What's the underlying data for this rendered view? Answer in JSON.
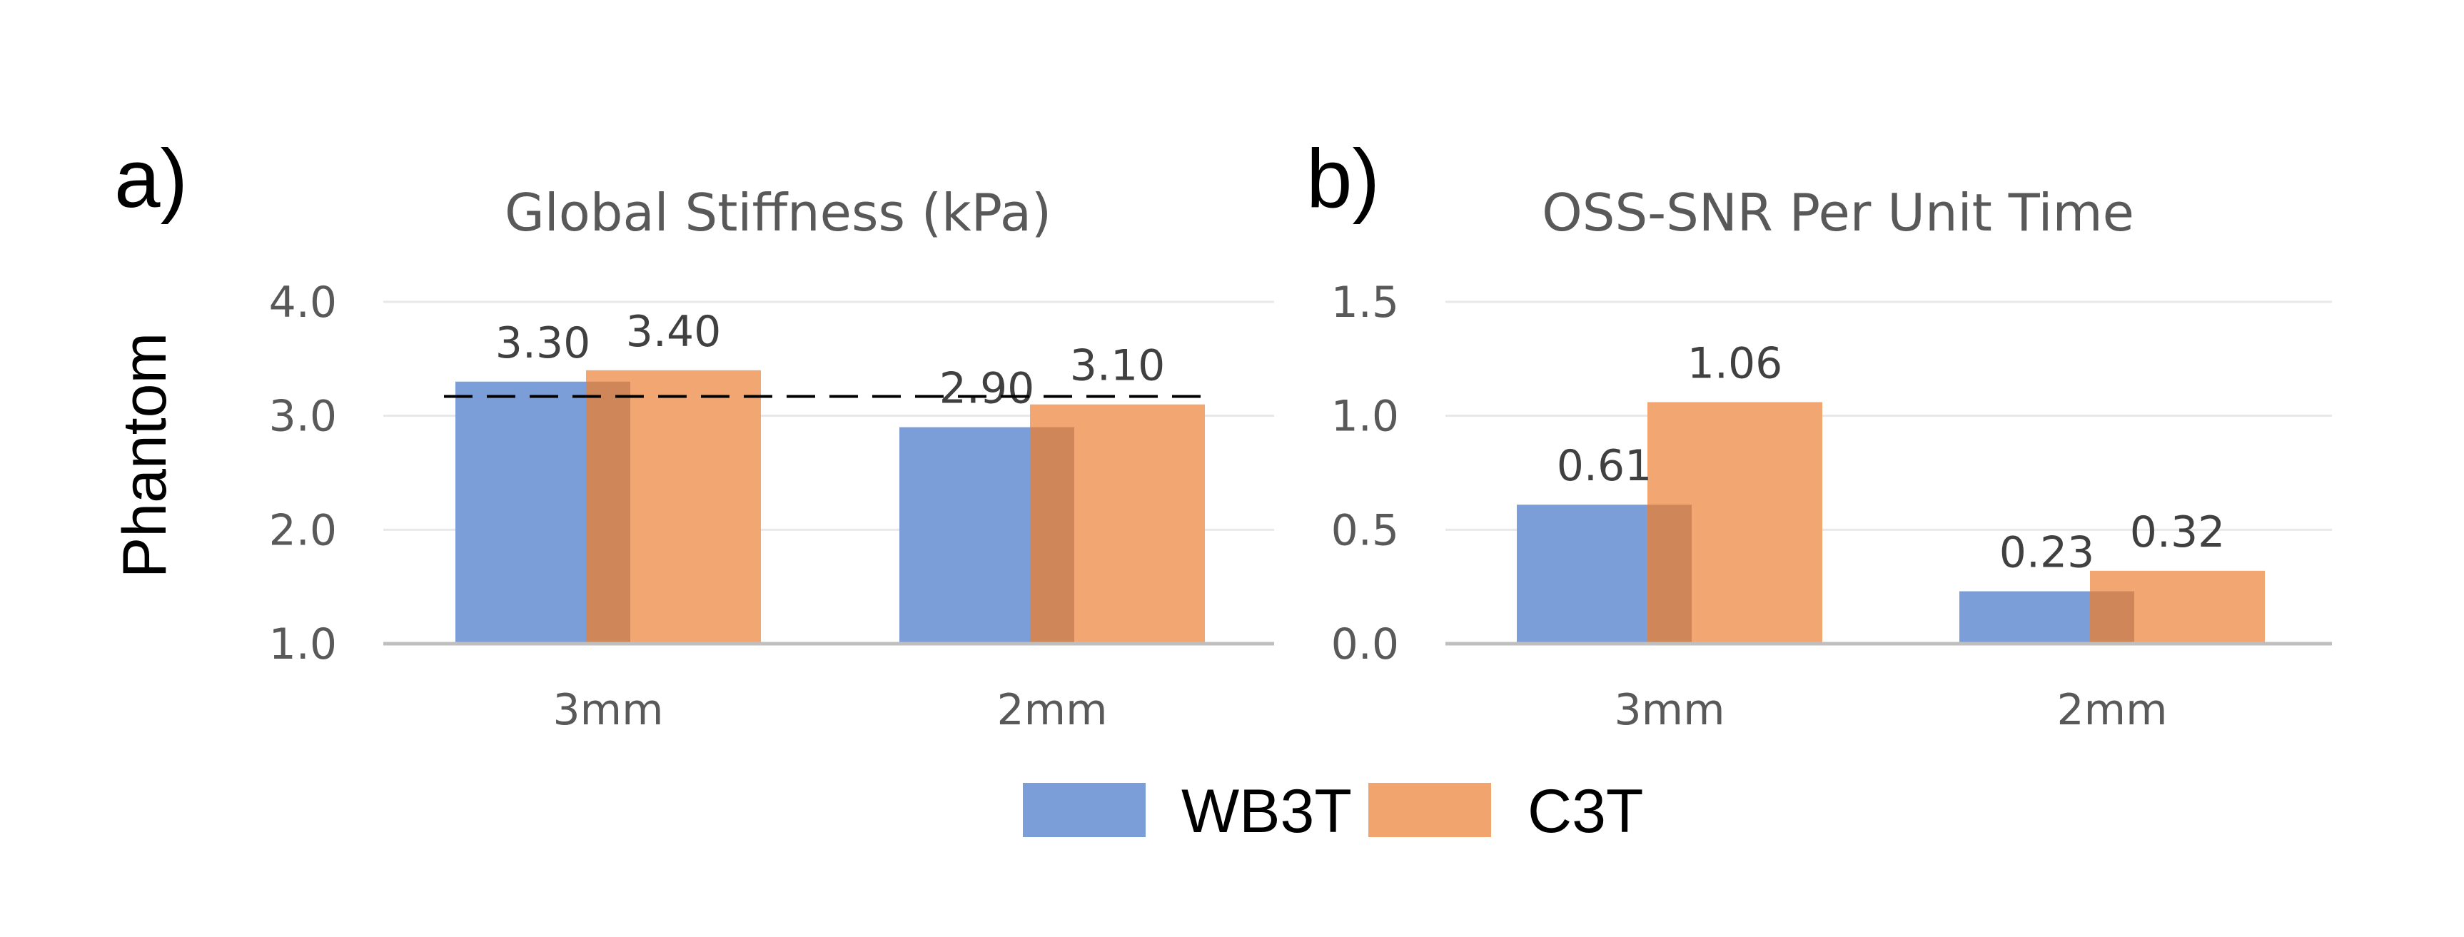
{
  "row_label": "Phantom",
  "legend": {
    "items": [
      {
        "name": "WB3T",
        "color": "#7B9ED8"
      },
      {
        "name": "C3T",
        "color": "#F2A46E"
      }
    ]
  },
  "colors": {
    "grid": "#e8e8e8",
    "axis": "#bfbfbf",
    "reference_line": "#000000"
  },
  "chart_data": [
    {
      "panel": "a)",
      "type": "bar",
      "title": "Global Stiffness (kPa)",
      "categories": [
        "3mm",
        "2mm"
      ],
      "series": [
        {
          "name": "WB3T",
          "values": [
            3.3,
            2.9
          ],
          "labels": [
            "3.30",
            "2.90"
          ]
        },
        {
          "name": "C3T",
          "values": [
            3.4,
            3.1
          ],
          "labels": [
            "3.40",
            "3.10"
          ]
        }
      ],
      "ylim": [
        1.0,
        4.0
      ],
      "yticks": [
        "1.0",
        "2.0",
        "3.0",
        "4.0"
      ],
      "ytick_values": [
        1.0,
        2.0,
        3.0,
        4.0
      ],
      "grid": true,
      "reference_line": {
        "y": 3.17,
        "style": "dashed"
      },
      "xlabel": "",
      "ylabel": ""
    },
    {
      "panel": "b)",
      "type": "bar",
      "title": "OSS-SNR Per Unit Time",
      "categories": [
        "3mm",
        "2mm"
      ],
      "series": [
        {
          "name": "WB3T",
          "values": [
            0.61,
            0.23
          ],
          "labels": [
            "0.61",
            "0.23"
          ]
        },
        {
          "name": "C3T",
          "values": [
            1.06,
            0.32
          ],
          "labels": [
            "1.06",
            "0.32"
          ]
        }
      ],
      "ylim": [
        0.0,
        1.5
      ],
      "yticks": [
        "0.0",
        "0.5",
        "1.0",
        "1.5"
      ],
      "ytick_values": [
        0.0,
        0.5,
        1.0,
        1.5
      ],
      "grid": true,
      "xlabel": "",
      "ylabel": ""
    }
  ]
}
